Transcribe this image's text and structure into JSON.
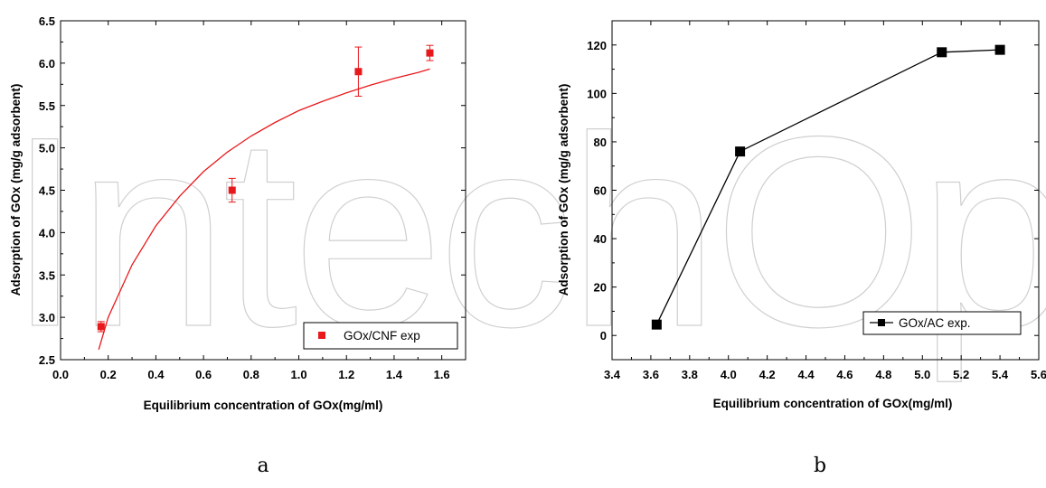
{
  "watermark": "IntechOpen",
  "chart_data": [
    {
      "type": "scatter",
      "panel_label": "a",
      "xlabel": "Equilibrium concentration of GOx(mg/ml)",
      "ylabel": "Adsorption of GOx (mg/g adsorbent)",
      "xlim": [
        0.0,
        1.7
      ],
      "ylim": [
        2.5,
        6.5
      ],
      "xticks": [
        "0.0",
        "0.2",
        "0.4",
        "0.6",
        "0.8",
        "1.0",
        "1.2",
        "1.4",
        "1.6"
      ],
      "yticks": [
        "2.5",
        "3.0",
        "3.5",
        "4.0",
        "4.5",
        "5.0",
        "5.5",
        "6.0",
        "6.5"
      ],
      "grid": false,
      "legend_position": "bottom-right",
      "color": "#e8191c",
      "series": [
        {
          "name": "GOx/CNF exp",
          "x": [
            0.17,
            0.72,
            1.25,
            1.55
          ],
          "y": [
            2.89,
            4.5,
            5.9,
            6.12
          ],
          "err": [
            0.06,
            0.14,
            0.29,
            0.09
          ],
          "marker": "square"
        }
      ],
      "fit_curve": {
        "x": [
          0.16,
          0.2,
          0.3,
          0.4,
          0.5,
          0.6,
          0.7,
          0.8,
          0.9,
          1.0,
          1.1,
          1.2,
          1.3,
          1.4,
          1.5,
          1.55
        ],
        "y": [
          2.62,
          3.0,
          3.62,
          4.08,
          4.43,
          4.72,
          4.95,
          5.14,
          5.3,
          5.44,
          5.55,
          5.65,
          5.74,
          5.82,
          5.89,
          5.93
        ]
      }
    },
    {
      "type": "line",
      "panel_label": "b",
      "xlabel": "Equilibrium concentration of GOx(mg/ml)",
      "ylabel": "Adsorption of GOx (mg/g adsorbent)",
      "xlim": [
        3.4,
        5.6
      ],
      "ylim": [
        -10,
        130
      ],
      "xticks": [
        "3.4",
        "3.6",
        "3.8",
        "4.0",
        "4.2",
        "4.4",
        "4.6",
        "4.8",
        "5.0",
        "5.2",
        "5.4",
        "5.6"
      ],
      "yticks": [
        "0",
        "20",
        "40",
        "60",
        "80",
        "100",
        "120"
      ],
      "grid": false,
      "legend_position": "bottom-right",
      "color": "#000000",
      "series": [
        {
          "name": "GOx/AC exp.",
          "x": [
            3.63,
            4.06,
            5.1,
            5.4
          ],
          "y": [
            4.5,
            76,
            117,
            118
          ],
          "marker": "square"
        }
      ]
    }
  ]
}
